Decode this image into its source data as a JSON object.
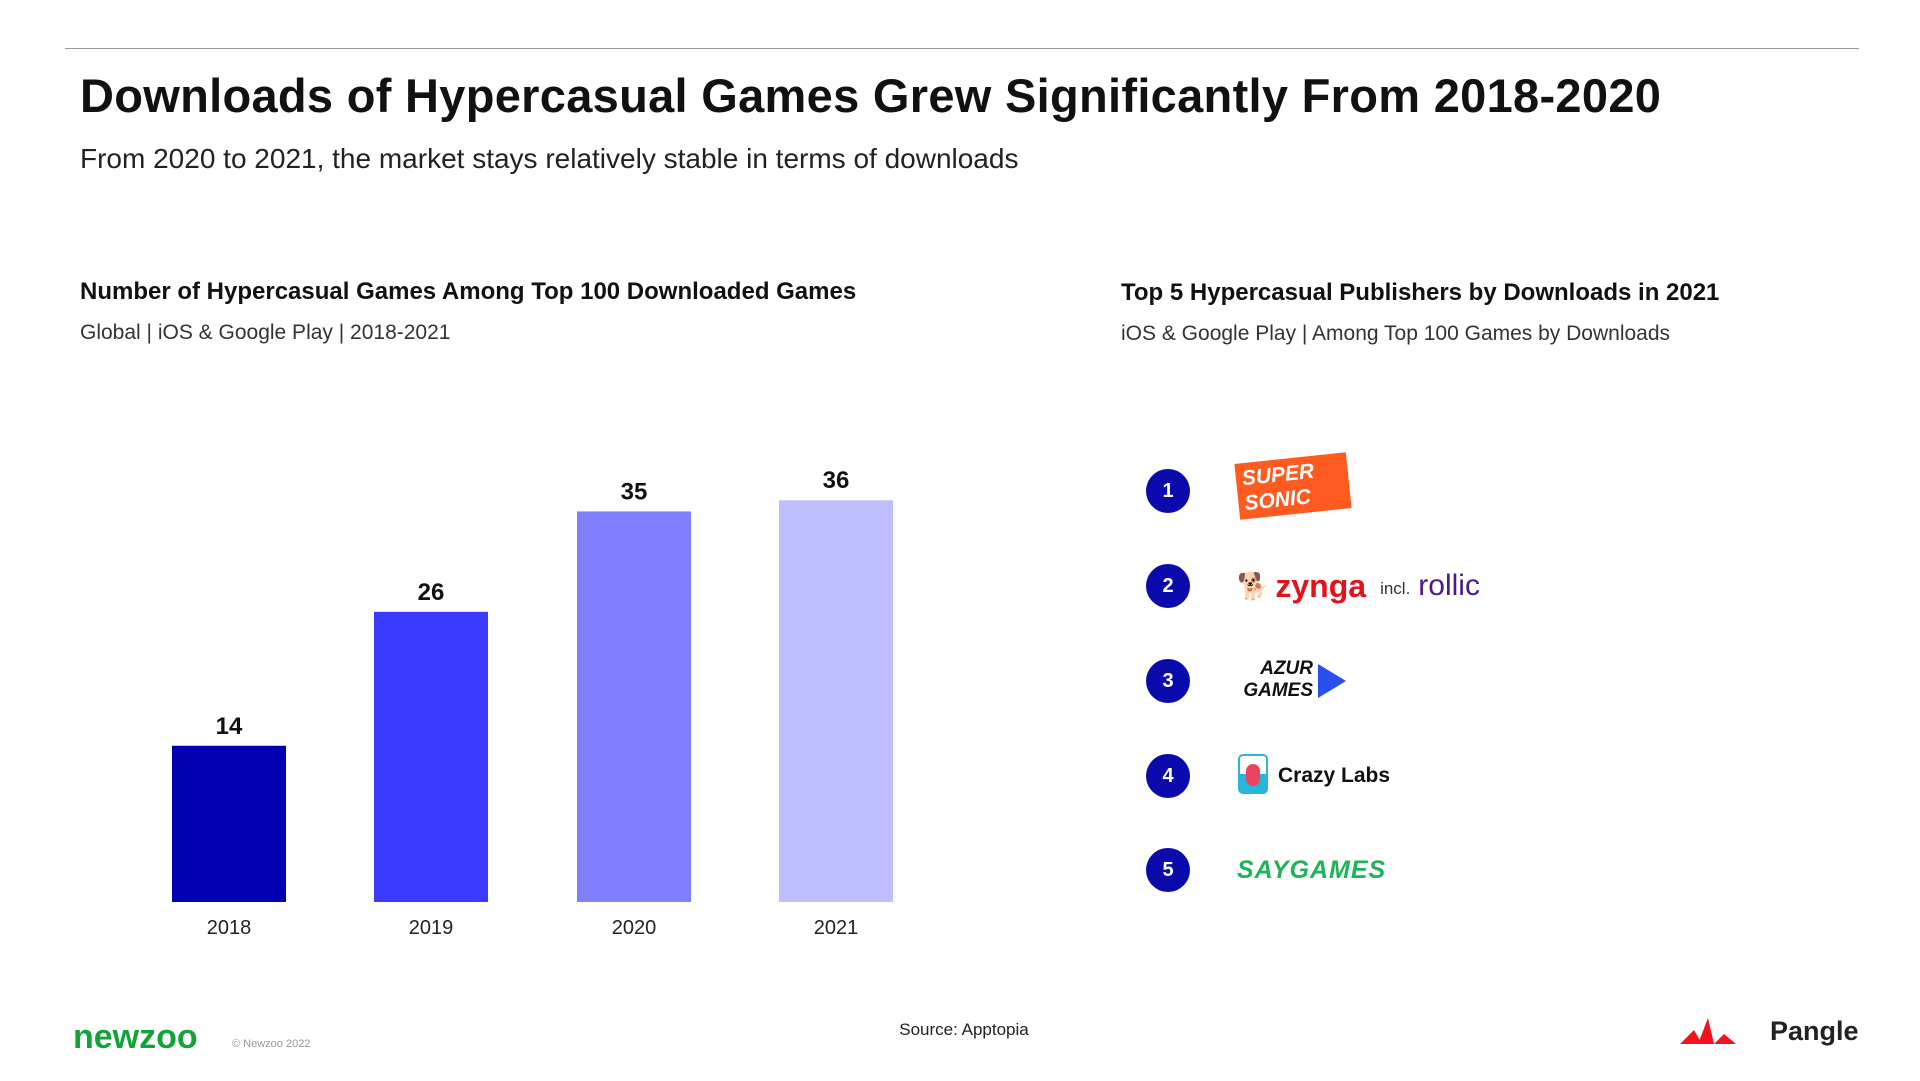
{
  "title": "Downloads of Hypercasual Games Grew Significantly From 2018-2020",
  "subtitle": "From 2020 to 2021, the market stays relatively stable in terms of downloads",
  "chart_data": {
    "type": "bar",
    "title": "Number of Hypercasual Games Among Top 100 Downloaded Games",
    "subtitle": "Global | iOS & Google Play | 2018-2021",
    "categories": [
      "2018",
      "2019",
      "2020",
      "2021"
    ],
    "values": [
      14,
      26,
      35,
      36
    ],
    "colors": [
      "#0000b3",
      "#3a3aff",
      "#8080ff",
      "#bfbfff"
    ],
    "data_labels": true,
    "grid": false,
    "ylim": [
      0,
      36
    ]
  },
  "publishers": {
    "title": "Top 5 Hypercasual Publishers by Downloads in 2021",
    "subtitle": "iOS & Google Play | Among Top 100 Games by Downloads",
    "items": [
      {
        "rank": "1",
        "logo": "SUPER SONIC",
        "color": "#ff5a1f"
      },
      {
        "rank": "2",
        "logo": "zynga",
        "extra": "incl.",
        "extra_logo": "rollic",
        "color": "#e3131b"
      },
      {
        "rank": "3",
        "logo": "AZUR GAMES",
        "color": "#111111"
      },
      {
        "rank": "4",
        "logo": "Crazy Labs",
        "color": "#111111"
      },
      {
        "rank": "5",
        "logo": "SAYGAMES",
        "color": "#1fb35a"
      }
    ]
  },
  "footer": {
    "brand": "newzoo",
    "copyright": "© Newzoo 2022",
    "source": "Source: Apptopia",
    "partner": "Pangle"
  }
}
